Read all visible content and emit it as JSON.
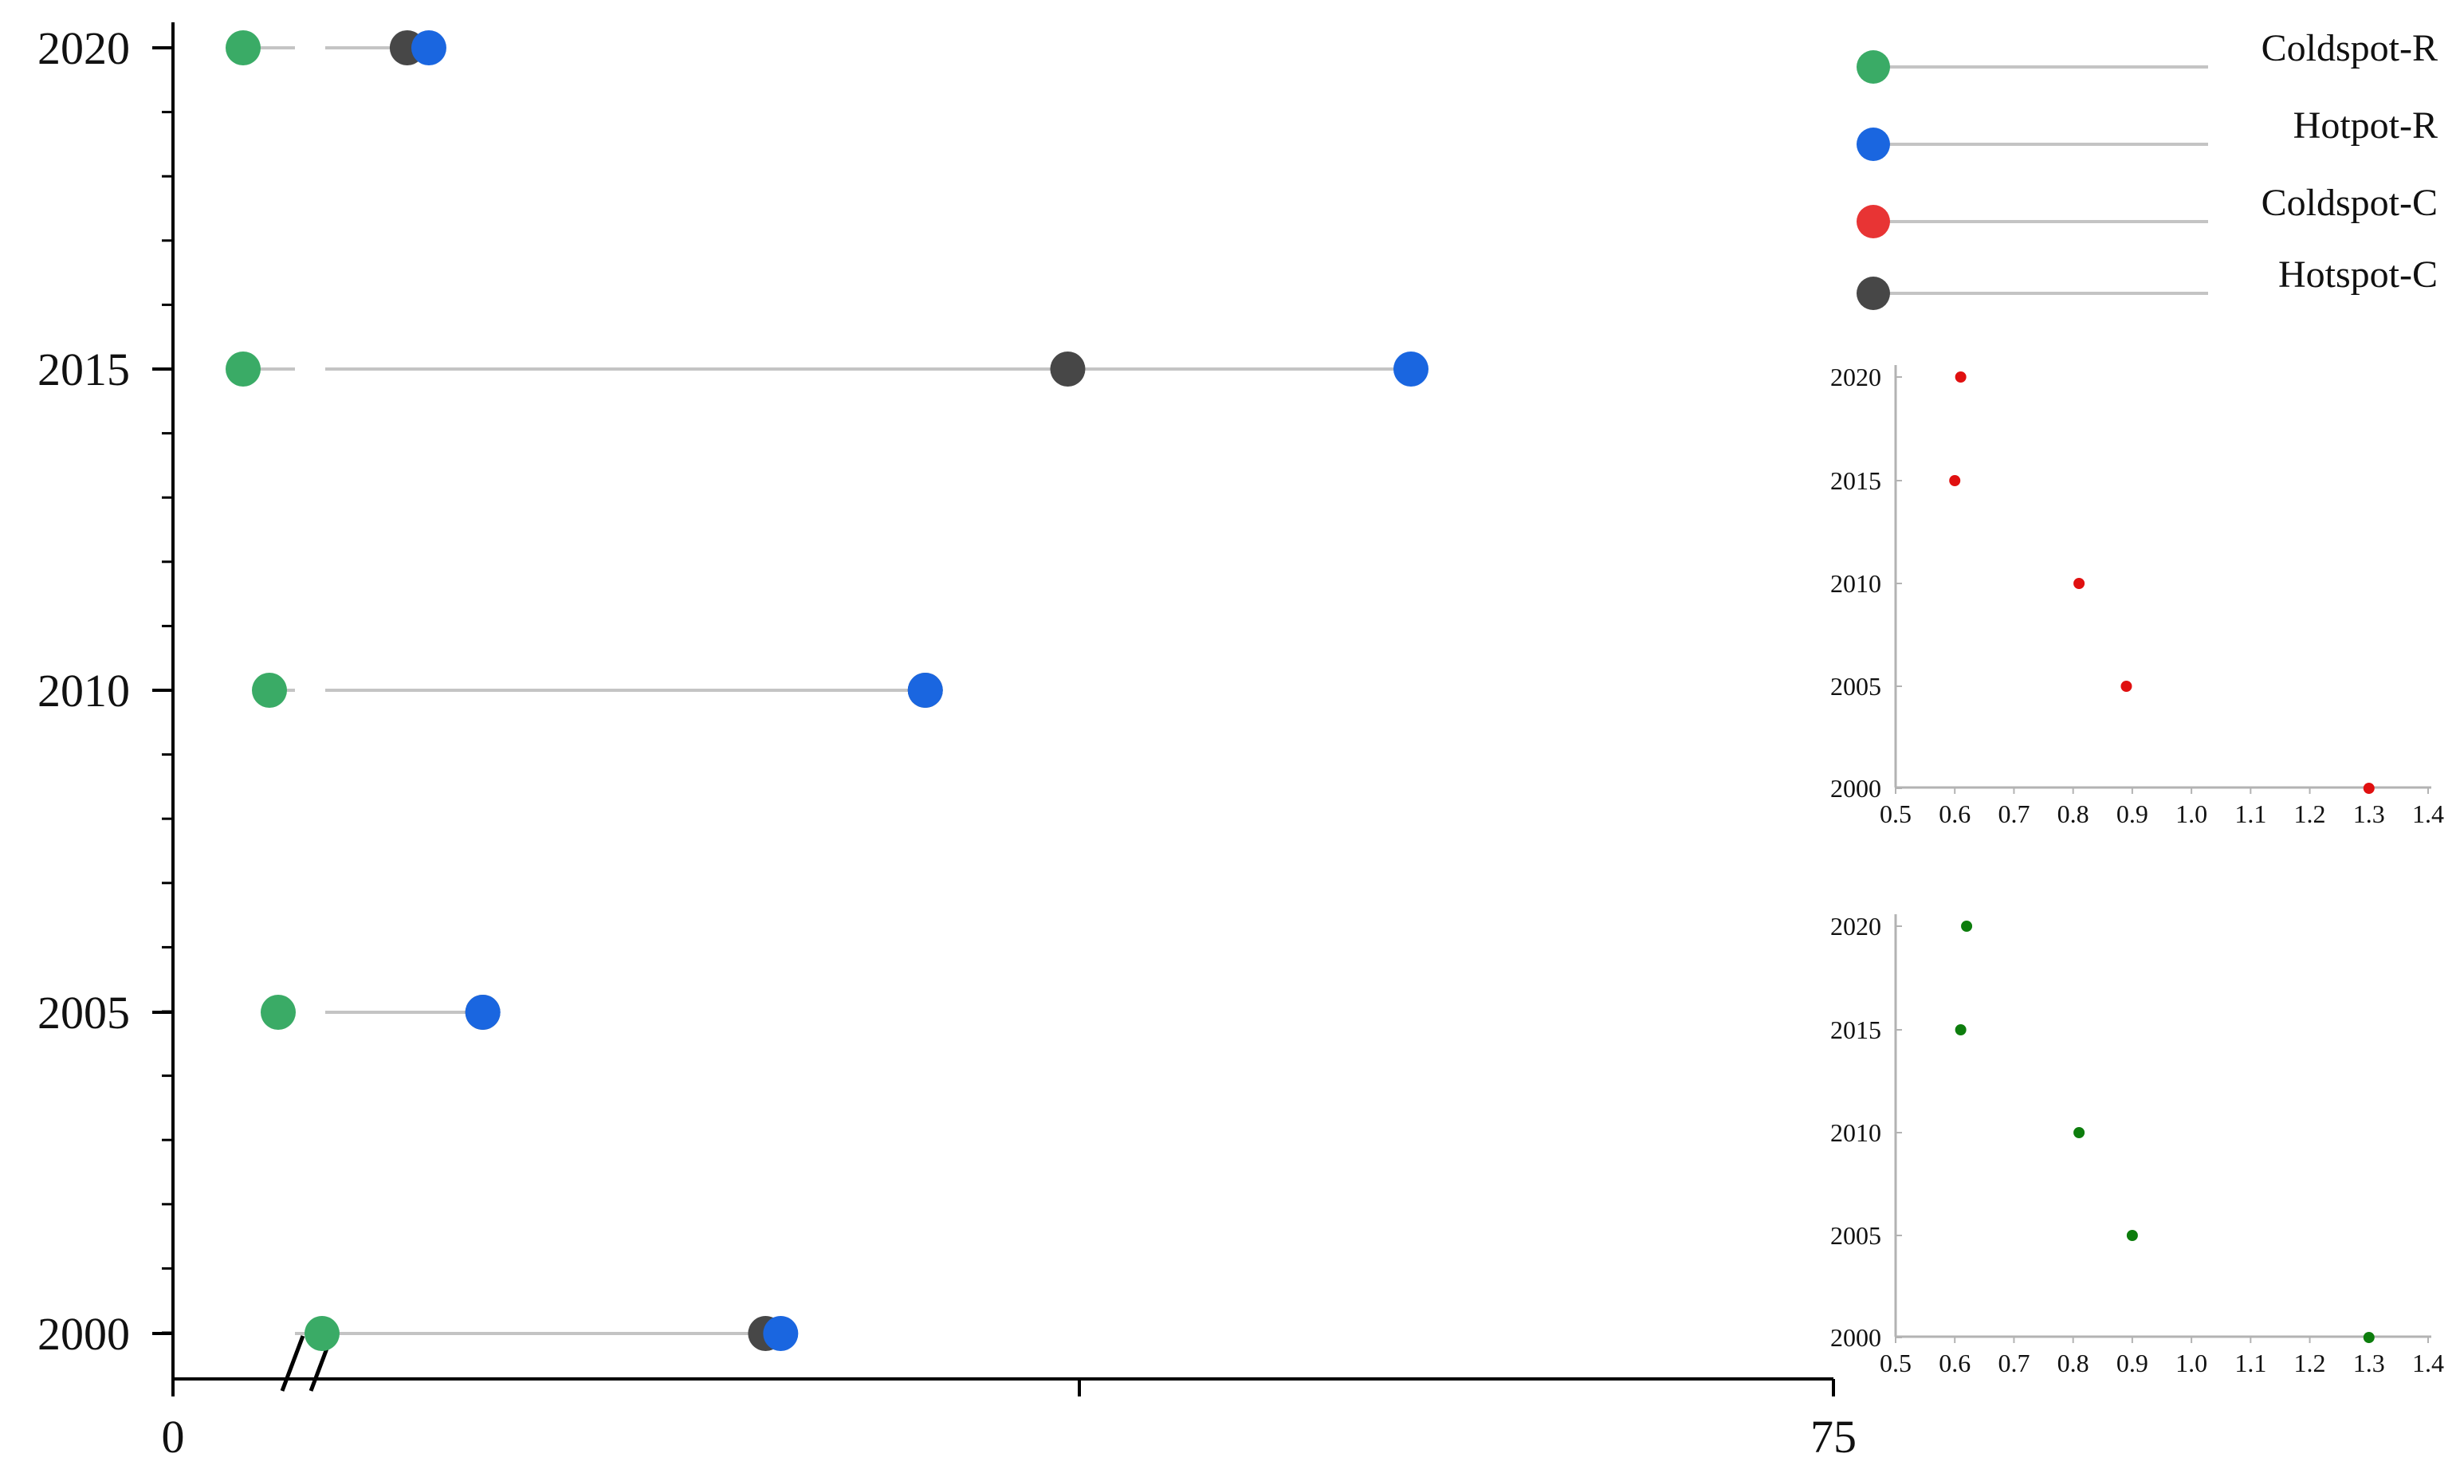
{
  "colors": {
    "coldspot_r": "#3aab66",
    "hotpot_r": "#1a66e0",
    "coldspot_c": "#e83434",
    "hotspot_c": "#474747",
    "connector": "#c4c4c4",
    "axis": "#000000",
    "inset_axis": "#b3b3b3",
    "inset_red_marker": "#e01010",
    "inset_green_marker": "#0d7d0d"
  },
  "legend": {
    "items": [
      {
        "key": "coldspot_r",
        "label": "Coldspot-R"
      },
      {
        "key": "hotpot_r",
        "label": "Hotpot-R"
      },
      {
        "key": "coldspot_c",
        "label": "Coldspot-C"
      },
      {
        "key": "hotspot_c",
        "label": "Hotspot-C"
      }
    ]
  },
  "chart_data": [
    {
      "type": "scatter",
      "description_role": "main dumbbell plot",
      "x_tick_labels": [
        "0",
        "75"
      ],
      "xlim": [
        0,
        75
      ],
      "x_axis_break": true,
      "y_tick_labels": [
        "2020",
        "2015",
        "2010",
        "2005",
        "2000"
      ],
      "categories": [
        "2020",
        "2015",
        "2010",
        "2005",
        "2000"
      ],
      "series": [
        {
          "name": "Coldspot-R",
          "key": "coldspot_r",
          "values": [
            1.6,
            1.6,
            2.2,
            2.4,
            3.4
          ]
        },
        {
          "name": "Hotspot-C",
          "key": "hotspot_c",
          "values": [
            9.8,
            40.4,
            33.8,
            13.3,
            26.4
          ]
        },
        {
          "name": "Hotpot-R",
          "key": "hotpot_r",
          "values": [
            10.8,
            56.3,
            33.8,
            13.3,
            27.1
          ]
        }
      ],
      "grid": false
    },
    {
      "type": "scatter",
      "description_role": "inset top (red)",
      "color_key": "inset_red_marker",
      "x_tick_labels": [
        "0.5",
        "0.6",
        "0.7",
        "0.8",
        "0.9",
        "1.0",
        "1.1",
        "1.2",
        "1.3",
        "1.4"
      ],
      "xlim": [
        0.5,
        1.4
      ],
      "y_tick_labels": [
        "2020",
        "2015",
        "2010",
        "2005",
        "2000"
      ],
      "points": [
        {
          "year": 2020,
          "x": 0.61
        },
        {
          "year": 2015,
          "x": 0.6
        },
        {
          "year": 2010,
          "x": 0.81
        },
        {
          "year": 2005,
          "x": 0.89
        },
        {
          "year": 2000,
          "x": 1.3
        }
      ]
    },
    {
      "type": "scatter",
      "description_role": "inset bottom (green)",
      "color_key": "inset_green_marker",
      "x_tick_labels": [
        "0.5",
        "0.6",
        "0.7",
        "0.8",
        "0.9",
        "1.0",
        "1.1",
        "1.2",
        "1.3",
        "1.4"
      ],
      "xlim": [
        0.5,
        1.4
      ],
      "y_tick_labels": [
        "2020",
        "2015",
        "2010",
        "2005",
        "2000"
      ],
      "points": [
        {
          "year": 2020,
          "x": 0.62
        },
        {
          "year": 2015,
          "x": 0.61
        },
        {
          "year": 2010,
          "x": 0.81
        },
        {
          "year": 2005,
          "x": 0.9
        },
        {
          "year": 2000,
          "x": 1.3
        }
      ]
    }
  ]
}
